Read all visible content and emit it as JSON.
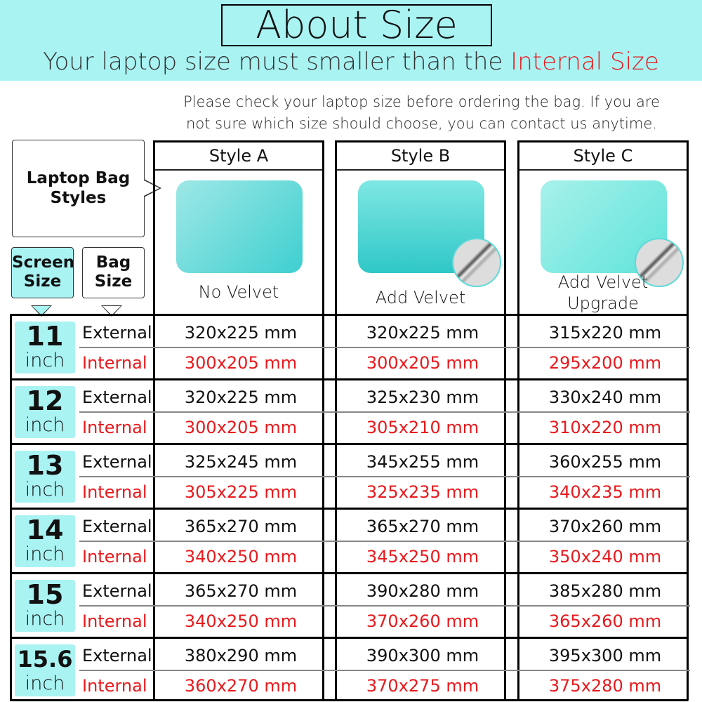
{
  "header": {
    "title": "About Size",
    "subtitle_prefix": "Your laptop size must smaller than the ",
    "subtitle_highlight": "Internal Size",
    "note_line1": "Please check your laptop size before ordering the bag. If you are",
    "note_line2": "not sure which size should choose, you can contact us anytime."
  },
  "labels": {
    "styles_box": "Laptop Bag Styles",
    "screen_size": "Screen Size",
    "bag_size": "Bag Size",
    "external": "External",
    "internal": "Internal"
  },
  "colors": {
    "accent": "#a9f3f3",
    "internal_text": "#e8191c"
  },
  "styles": [
    {
      "name": "Style A",
      "caption1": "No Velvet",
      "caption2": ""
    },
    {
      "name": "Style B",
      "caption1": "Add Velvet",
      "caption2": ""
    },
    {
      "name": "Style C",
      "caption1": "Add Velvet",
      "caption2": "Upgrade"
    }
  ],
  "rows": [
    {
      "size": "11",
      "unit": "inch",
      "external": [
        "320x225 mm",
        "320x225 mm",
        "315x220 mm"
      ],
      "internal": [
        "300x205 mm",
        "300x205 mm",
        "295x200 mm"
      ]
    },
    {
      "size": "12",
      "unit": "inch",
      "external": [
        "320x225 mm",
        "325x230 mm",
        "330x240 mm"
      ],
      "internal": [
        "300x205 mm",
        "305x210 mm",
        "310x220 mm"
      ]
    },
    {
      "size": "13",
      "unit": "inch",
      "external": [
        "325x245 mm",
        "345x255 mm",
        "360x255 mm"
      ],
      "internal": [
        "305x225 mm",
        "325x235 mm",
        "340x235 mm"
      ]
    },
    {
      "size": "14",
      "unit": "inch",
      "external": [
        "365x270 mm",
        "365x270 mm",
        "370x260 mm"
      ],
      "internal": [
        "340x250 mm",
        "345x250 mm",
        "350x240 mm"
      ]
    },
    {
      "size": "15",
      "unit": "inch",
      "external": [
        "365x270 mm",
        "390x280 mm",
        "385x280 mm"
      ],
      "internal": [
        "340x250 mm",
        "370x260 mm",
        "365x260 mm"
      ]
    },
    {
      "size": "15.6",
      "unit": "inch",
      "external": [
        "380x290 mm",
        "390x300 mm",
        "395x300 mm"
      ],
      "internal": [
        "360x270 mm",
        "370x275 mm",
        "375x280 mm"
      ]
    }
  ]
}
